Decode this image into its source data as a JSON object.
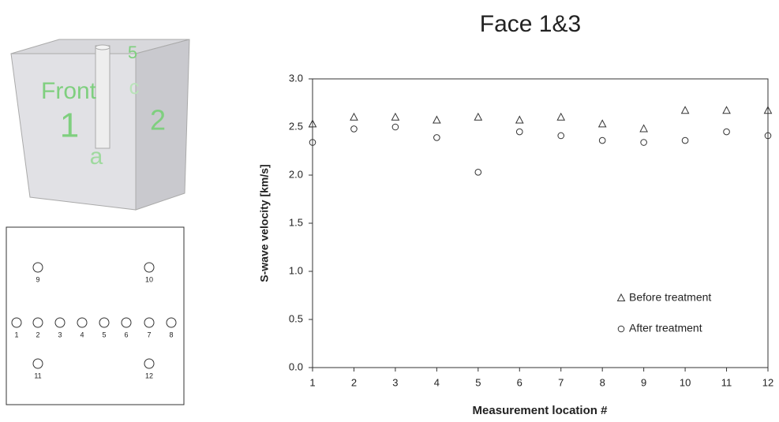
{
  "chart_data": {
    "type": "scatter",
    "title": "Face 1&3",
    "xlabel": "Measurement location #",
    "ylabel": "S-wave velocity [km/s]",
    "x": [
      1,
      2,
      3,
      4,
      5,
      6,
      7,
      8,
      9,
      10,
      11,
      12
    ],
    "series": [
      {
        "name": "Before treatment",
        "marker": "triangle",
        "color": "#333333",
        "values": [
          2.53,
          2.6,
          2.6,
          2.57,
          2.6,
          2.57,
          2.6,
          2.53,
          2.48,
          2.67,
          2.67,
          2.67
        ]
      },
      {
        "name": "After treatment",
        "marker": "circle",
        "color": "#333333",
        "values": [
          2.34,
          2.48,
          2.5,
          2.39,
          2.03,
          2.45,
          2.41,
          2.36,
          2.34,
          2.36,
          2.45,
          2.41
        ]
      }
    ],
    "xlim": [
      1,
      12
    ],
    "xticks": [
      1,
      2,
      3,
      4,
      5,
      6,
      7,
      8,
      9,
      10,
      11,
      12
    ],
    "ylim": [
      0,
      3
    ],
    "yticks": [
      {
        "value": 0,
        "label": "0.0"
      },
      0.5,
      {
        "value": 1,
        "label": "1.0"
      },
      1.5,
      {
        "value": 2,
        "label": "2.0"
      },
      2.5,
      {
        "value": 3,
        "label": "3.0"
      }
    ],
    "grid": false,
    "legend": "lower right"
  },
  "cube": {
    "labels": [
      "Front",
      "1",
      "2",
      "5",
      "c",
      "a"
    ]
  },
  "location_map": {
    "labels": [
      "1",
      "2",
      "3",
      "4",
      "5",
      "6",
      "7",
      "8",
      "9",
      "10",
      "11",
      "12"
    ]
  }
}
